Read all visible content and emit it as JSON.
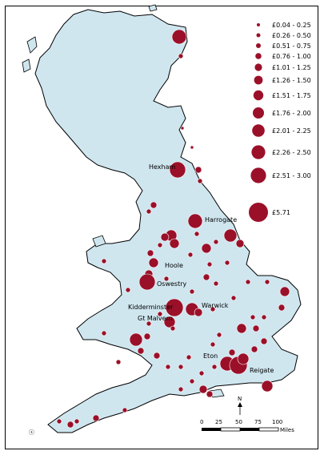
{
  "colors": {
    "land": "#cfe6ef",
    "coast": "#000000",
    "marker": "#9b1029",
    "marker_stroke": "#ffffff"
  },
  "legend": [
    {
      "label": "£0.04 - 0.25"
    },
    {
      "label": "£0.26 - 0.50"
    },
    {
      "label": "£0.51 - 0.75"
    },
    {
      "label": "£0.76 - 1.00"
    },
    {
      "label": "£1.01 - 1.25"
    },
    {
      "label": "£1.26 - 1.50"
    },
    {
      "label": "£1.51 - 1.75"
    },
    {
      "label": "£1.76 - 2.00"
    },
    {
      "label": "£2.01 - 2.25"
    },
    {
      "label": "£2.26 - 2.50"
    },
    {
      "label": "£2.51 - 3.00"
    },
    {
      "label": "£5.71"
    }
  ],
  "towns": [
    "Hexham",
    "Harrogate",
    "Hoole",
    "Oswestry",
    "Kidderminster",
    "Warwick",
    "Gt Malvern",
    "Eton",
    "Reigate"
  ],
  "scale": {
    "ticks": [
      "0",
      "25",
      "50",
      "75",
      "100"
    ],
    "unit": "Miles"
  },
  "north_label": "N"
}
